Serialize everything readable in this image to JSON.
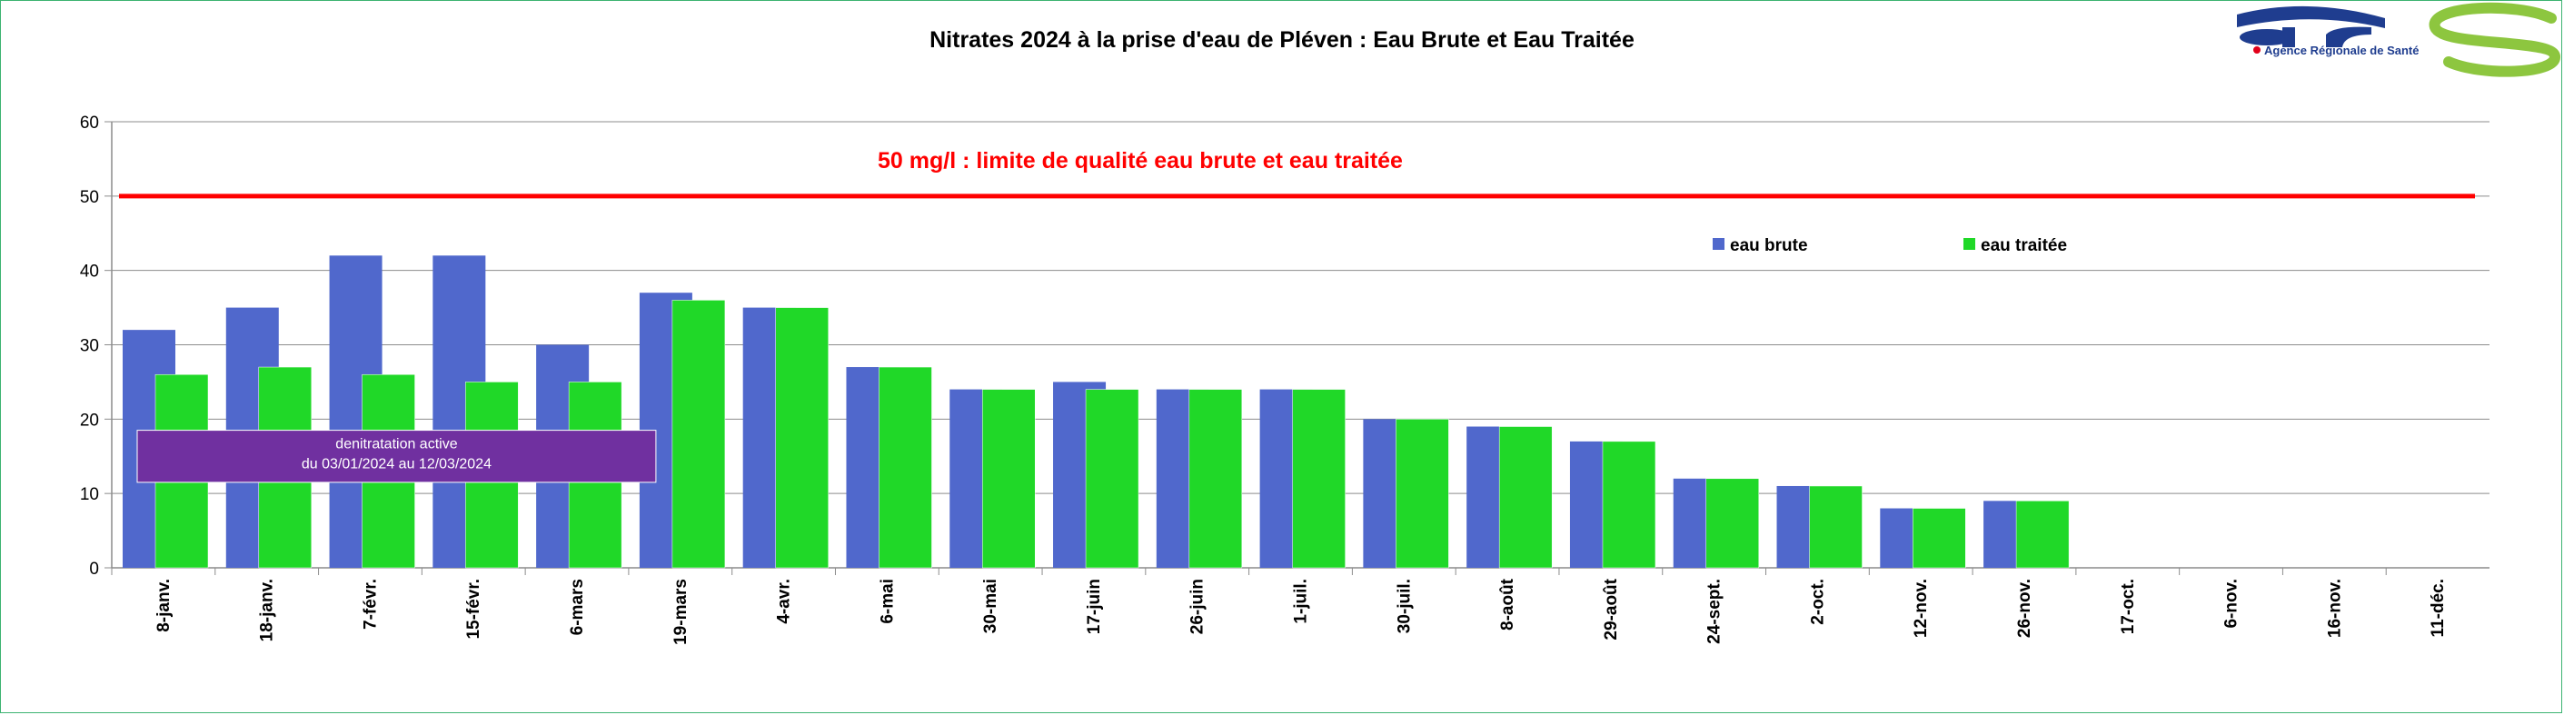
{
  "chart_data": {
    "type": "bar",
    "title": "Nitrates 2024 à la prise d'eau de Pléven : Eau Brute et Eau Traitée",
    "categories": [
      "8-janv.",
      "18-janv.",
      "7-févr.",
      "15-févr.",
      "6-mars",
      "19-mars",
      "4-avr.",
      "6-mai",
      "30-mai",
      "17-juin",
      "26-juin",
      "1-juil.",
      "30-juil.",
      "8-août",
      "29-août",
      "24-sept.",
      "2-oct.",
      "12-nov.",
      "26-nov.",
      "17-oct.",
      "6-nov.",
      "16-nov.",
      "11-déc."
    ],
    "series": [
      {
        "name": "eau brute",
        "color": "#5068cc",
        "values": [
          32,
          35,
          42,
          42,
          30,
          37,
          35,
          27,
          24,
          25,
          24,
          24,
          20,
          19,
          17,
          12,
          11,
          8,
          9,
          null,
          null,
          null,
          null
        ]
      },
      {
        "name": "eau traitée",
        "color": "#20d828",
        "values": [
          26,
          27,
          26,
          25,
          25,
          36,
          35,
          27,
          24,
          24,
          24,
          24,
          20,
          19,
          17,
          12,
          11,
          8,
          9,
          null,
          null,
          null,
          null
        ]
      }
    ],
    "ylim": [
      0,
      60
    ],
    "yticks": [
      0,
      10,
      20,
      30,
      40,
      50,
      60
    ],
    "grid": true,
    "legend_position": "top-right",
    "reference_line": {
      "value": 50,
      "color": "#ff0000",
      "label": "50 mg/l : limite de qualité eau brute et eau traitée"
    },
    "annotation": {
      "lines": [
        "denitratation active",
        "du 03/01/2024 au 12/03/2024"
      ],
      "color": "#7030a0",
      "from_category": "8-janv.",
      "to_category": "6-mars",
      "y_range": [
        11.5,
        18.5
      ]
    }
  },
  "logo": {
    "letters": "ars",
    "tagline": "Agence Régionale de Santé",
    "blue": "#1f3d8f",
    "green": "#8dc63f",
    "red": "#e2001a"
  }
}
